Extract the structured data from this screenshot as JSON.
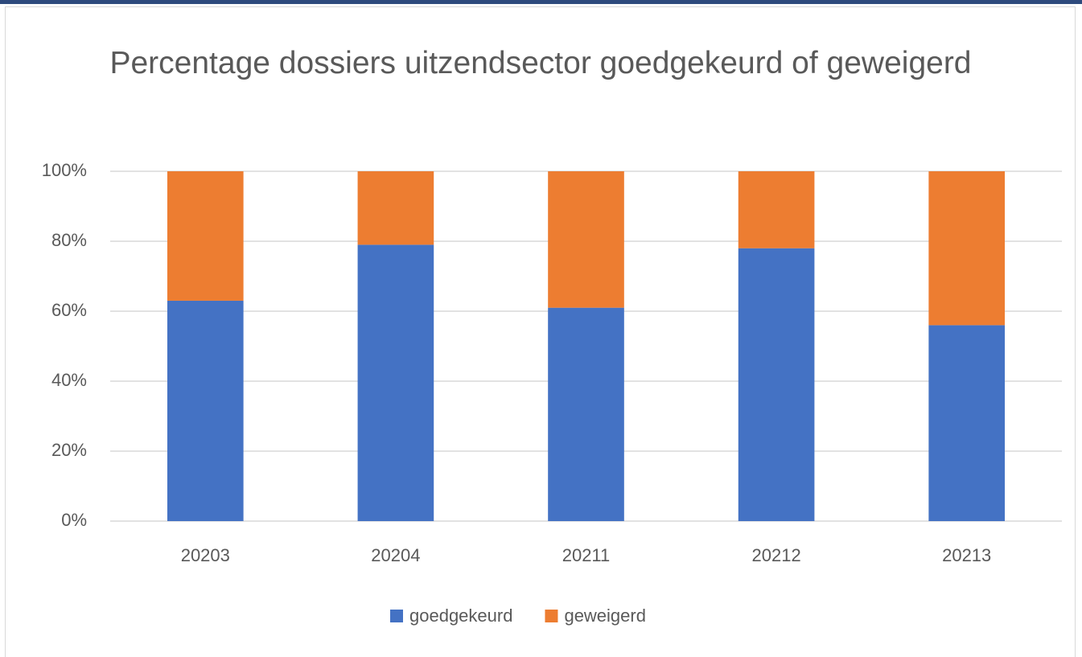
{
  "chart_data": {
    "type": "stacked_bar",
    "title": "Percentage dossiers uitzendsector goedgekeurd of geweigerd",
    "categories": [
      "20203",
      "20204",
      "20211",
      "20212",
      "20213"
    ],
    "series": [
      {
        "name": "goedgekeurd",
        "color": "#4472c4",
        "values": [
          63,
          79,
          61,
          78,
          56
        ]
      },
      {
        "name": "geweigerd",
        "color": "#ed7d31",
        "values": [
          37,
          21,
          39,
          22,
          44
        ]
      }
    ],
    "ylim": [
      0,
      100
    ],
    "yticks": [
      {
        "value": 0,
        "label": "0%"
      },
      {
        "value": 20,
        "label": "20%"
      },
      {
        "value": 40,
        "label": "40%"
      },
      {
        "value": 60,
        "label": "60%"
      },
      {
        "value": 80,
        "label": "80%"
      },
      {
        "value": 100,
        "label": "100%"
      }
    ],
    "grid": true,
    "legend": "bottom"
  }
}
